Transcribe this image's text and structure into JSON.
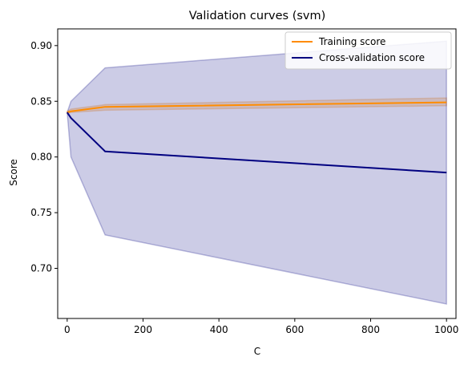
{
  "chart_data": {
    "type": "line",
    "title": "Validation curves (svm)",
    "xlabel": "C",
    "ylabel": "Score",
    "xlim": [
      -25,
      1025
    ],
    "ylim": [
      0.655,
      0.915
    ],
    "xticks": [
      0,
      200,
      400,
      600,
      800,
      1000
    ],
    "yticks": [
      0.7,
      0.75,
      0.8,
      0.85,
      0.9
    ],
    "legend_position": "top-right",
    "grid": false,
    "x": [
      0.001,
      10,
      100,
      1000
    ],
    "series": [
      {
        "name": "Training score",
        "color": "#ff8c00",
        "values": [
          0.84,
          0.841,
          0.845,
          0.849
        ],
        "band_lower": [
          0.839,
          0.84,
          0.842,
          0.846
        ],
        "band_upper": [
          0.841,
          0.843,
          0.847,
          0.853
        ]
      },
      {
        "name": "Cross-validation score",
        "color": "#000080",
        "values": [
          0.84,
          0.835,
          0.805,
          0.786
        ],
        "band_lower": [
          0.84,
          0.8,
          0.73,
          0.668
        ],
        "band_upper": [
          0.84,
          0.85,
          0.88,
          0.904
        ]
      }
    ]
  }
}
